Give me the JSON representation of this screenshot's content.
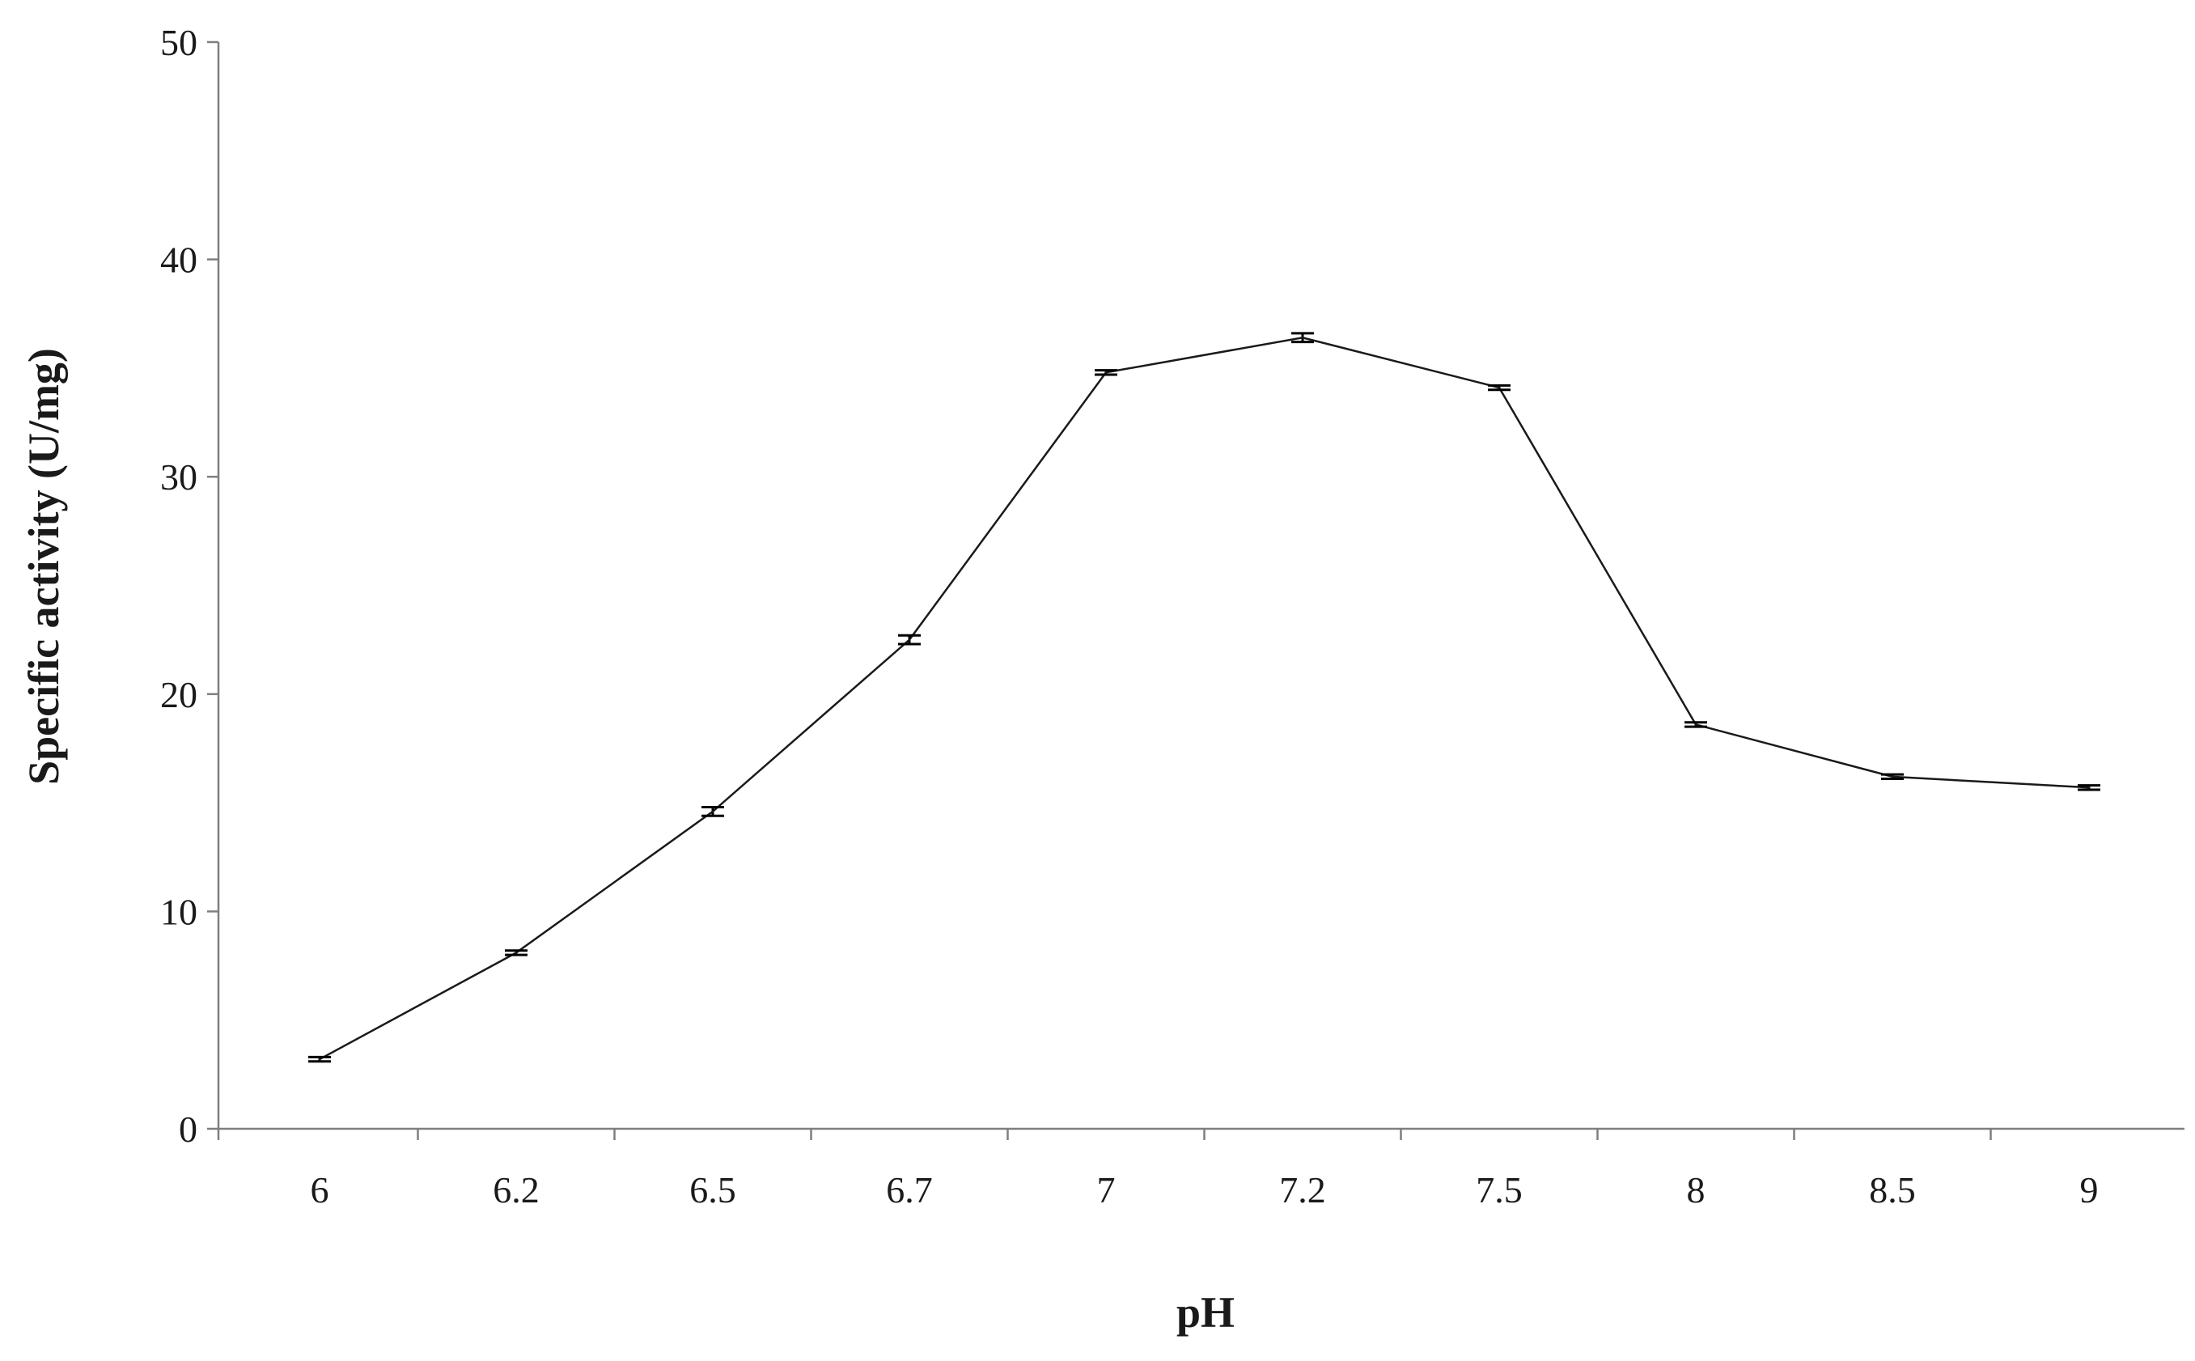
{
  "chart_data": {
    "type": "line",
    "categories": [
      "6",
      "6.2",
      "6.5",
      "6.7",
      "7",
      "7.2",
      "7.5",
      "8",
      "8.5",
      "9"
    ],
    "series": [
      {
        "values": [
          3.2,
          8.1,
          14.6,
          22.5,
          34.8,
          36.4,
          34.1,
          18.6,
          16.2,
          15.7
        ],
        "error": [
          0.1,
          0.1,
          0.2,
          0.2,
          0.1,
          0.2,
          0.1,
          0.1,
          0.1,
          0.1
        ]
      }
    ],
    "xlabel": "pH",
    "ylabel": "Specific activity (U/mg)",
    "ylim": [
      0,
      50
    ],
    "yticks": [
      "0",
      "10",
      "20",
      "30",
      "40",
      "50"
    ],
    "grid": false,
    "line_color": "#1a1a1a",
    "axis_color": "#7f7f7f"
  }
}
